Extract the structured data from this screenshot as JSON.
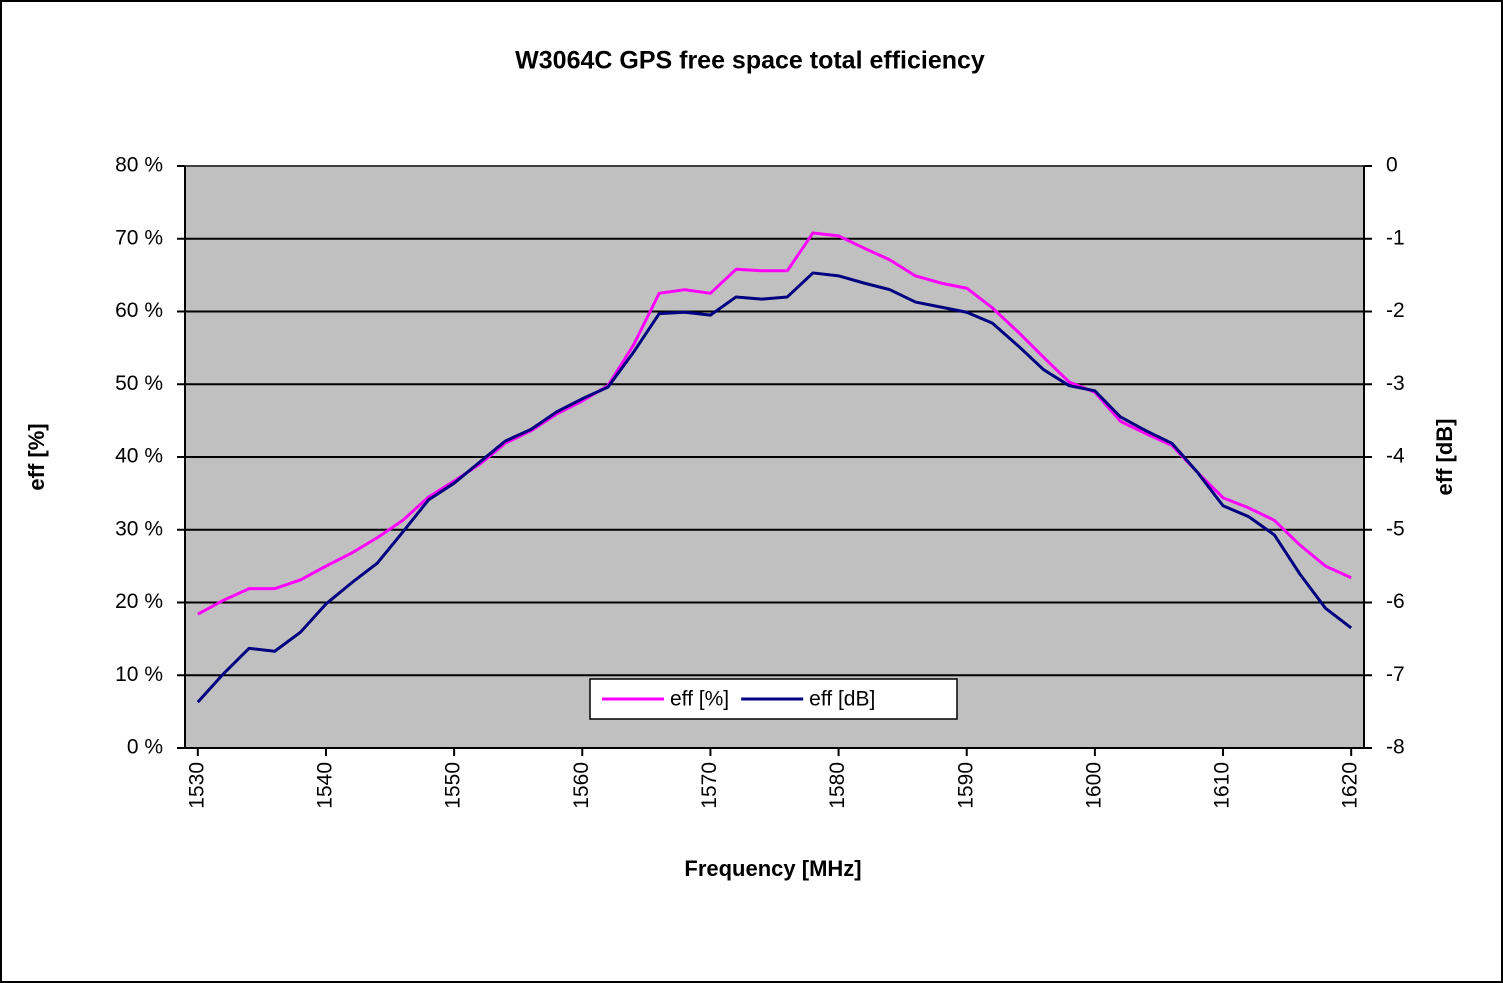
{
  "chart_data": {
    "type": "line",
    "title": "W3064C GPS free space total efficiency",
    "xlabel": "Frequency [MHz]",
    "ylabel": "eff [%]",
    "y2label": "eff [dB]",
    "x": [
      1530,
      1532,
      1534,
      1536,
      1538,
      1540,
      1542,
      1544,
      1546,
      1548,
      1550,
      1552,
      1554,
      1556,
      1558,
      1560,
      1562,
      1564,
      1566,
      1568,
      1570,
      1572,
      1574,
      1576,
      1578,
      1580,
      1582,
      1584,
      1586,
      1588,
      1590,
      1592,
      1594,
      1596,
      1598,
      1600,
      1602,
      1604,
      1606,
      1608,
      1610,
      1612,
      1614,
      1616,
      1618,
      1620
    ],
    "xlim": [
      1529,
      1621
    ],
    "xticks": [
      1530,
      1540,
      1550,
      1560,
      1570,
      1580,
      1590,
      1600,
      1610,
      1620
    ],
    "ylim": [
      0,
      80
    ],
    "yticks": [
      {
        "value": 0,
        "label": "0 %"
      },
      {
        "value": 10,
        "label": "10 %"
      },
      {
        "value": 20,
        "label": "20 %"
      },
      {
        "value": 30,
        "label": "30 %"
      },
      {
        "value": 40,
        "label": "40 %"
      },
      {
        "value": 50,
        "label": "50 %"
      },
      {
        "value": 60,
        "label": "60 %"
      },
      {
        "value": 70,
        "label": "70 %"
      },
      {
        "value": 80,
        "label": "80 %"
      }
    ],
    "y2lim": [
      -8,
      0
    ],
    "y2ticks": [
      0,
      -1,
      -2,
      -3,
      -4,
      -5,
      -6,
      -7,
      -8
    ],
    "grid": true,
    "legend": "bottom",
    "series": [
      {
        "name": "eff [%]",
        "color": "#ff00ff",
        "values": [
          18.4,
          20.3,
          21.9,
          21.9,
          23.1,
          25.0,
          26.8,
          28.9,
          31.3,
          34.5,
          36.7,
          39.0,
          41.9,
          43.6,
          45.9,
          47.7,
          49.8,
          55.4,
          62.5,
          63.0,
          62.5,
          65.8,
          65.6,
          65.6,
          70.8,
          70.4,
          68.7,
          67.1,
          64.9,
          63.9,
          63.2,
          60.5,
          57.2,
          53.7,
          50.3,
          48.9,
          44.9,
          43.2,
          41.6,
          37.9,
          34.4,
          33.0,
          31.3,
          27.9,
          25.0,
          23.4
        ]
      },
      {
        "name": "eff [dB]",
        "color": "#000080",
        "axis": "y2",
        "values": [
          -7.37,
          -6.98,
          -6.63,
          -6.67,
          -6.41,
          -6.02,
          -5.73,
          -5.46,
          -5.03,
          -4.59,
          -4.36,
          -4.07,
          -3.78,
          -3.62,
          -3.38,
          -3.2,
          -3.04,
          -2.56,
          -2.03,
          -2.01,
          -2.05,
          -1.8,
          -1.83,
          -1.8,
          -1.47,
          -1.51,
          -1.61,
          -1.7,
          -1.87,
          -1.94,
          -2.01,
          -2.16,
          -2.47,
          -2.8,
          -3.02,
          -3.09,
          -3.45,
          -3.64,
          -3.81,
          -4.21,
          -4.67,
          -4.82,
          -5.07,
          -5.61,
          -6.08,
          -6.35
        ]
      }
    ]
  }
}
